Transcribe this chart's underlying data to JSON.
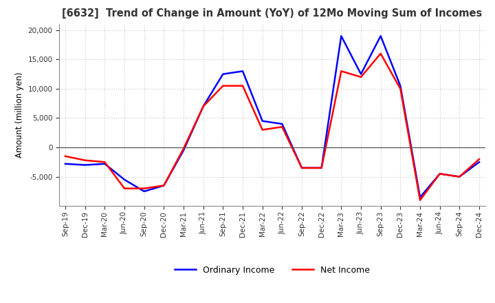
{
  "title": "[6632]  Trend of Change in Amount (YoY) of 12Mo Moving Sum of Incomes",
  "ylabel": "Amount (million yen)",
  "x_labels": [
    "Sep-19",
    "Dec-19",
    "Mar-20",
    "Jun-20",
    "Sep-20",
    "Dec-20",
    "Mar-21",
    "Jun-21",
    "Sep-21",
    "Dec-21",
    "Mar-22",
    "Jun-22",
    "Sep-22",
    "Dec-22",
    "Mar-23",
    "Jun-23",
    "Sep-23",
    "Dec-23",
    "Mar-24",
    "Jun-24",
    "Sep-24",
    "Dec-24"
  ],
  "ordinary_income": [
    -2800,
    -3000,
    -2800,
    -5500,
    -7500,
    -6500,
    -500,
    7000,
    12500,
    13000,
    4500,
    4000,
    -3500,
    -3500,
    19000,
    12500,
    19000,
    10500,
    -8500,
    -4500,
    -5000,
    -2500
  ],
  "net_income": [
    -1500,
    -2200,
    -2500,
    -7000,
    -7000,
    -6500,
    -200,
    7000,
    10500,
    10500,
    3000,
    3500,
    -3500,
    -3500,
    13000,
    12000,
    16000,
    10000,
    -9000,
    -4500,
    -5000,
    -2000
  ],
  "ordinary_color": "#0000ff",
  "net_color": "#ff0000",
  "ylim": [
    -10000,
    21000
  ],
  "yticks": [
    -5000,
    0,
    5000,
    10000,
    15000,
    20000
  ],
  "background_color": "#ffffff",
  "grid_color": "#c8c8c8",
  "legend_labels": [
    "Ordinary Income",
    "Net Income"
  ]
}
